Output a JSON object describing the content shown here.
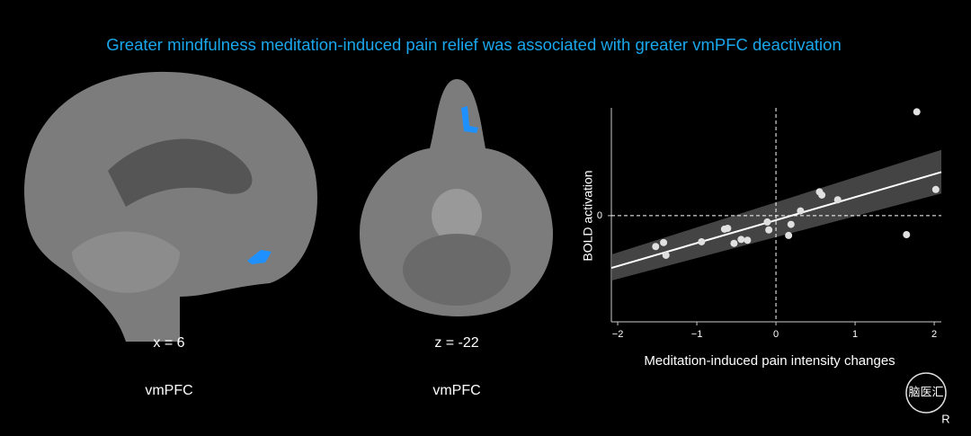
{
  "title": "Greater mindfulness meditation-induced pain relief was associated with greater vmPFC deactivation",
  "panels": [
    {
      "coord": "x = 6",
      "region": "vmPFC"
    },
    {
      "coord": "z = -22",
      "region": "vmPFC"
    }
  ],
  "chart_data": {
    "type": "scatter",
    "x_label": "Meditation-induced pain intensity changes",
    "y_label": "BOLD activation",
    "color": "#e0e0e0",
    "xlim": [
      -2.08,
      2.09
    ],
    "ylim": [
      -1.34,
      1.36
    ],
    "xticks": [
      {
        "value": -2,
        "label": "−2"
      },
      {
        "value": -1,
        "label": "−1"
      },
      0,
      1,
      2
    ],
    "yticks": [
      0
    ],
    "x": [
      -1.52,
      -1.42,
      -1.39,
      -0.94,
      -0.65,
      -0.61,
      -0.53,
      -0.44,
      -0.36,
      -0.11,
      -0.09,
      0.16,
      0.19,
      0.31,
      0.55,
      0.58,
      0.78,
      1.65,
      1.78,
      2.02
    ],
    "values": [
      -0.39,
      -0.34,
      -0.5,
      -0.33,
      -0.17,
      -0.16,
      -0.35,
      -0.3,
      -0.31,
      -0.08,
      -0.18,
      -0.25,
      -0.11,
      0.06,
      0.3,
      0.26,
      0.2,
      -0.24,
      1.31,
      0.33
    ],
    "fit": {
      "x": [
        -2.08,
        2.09
      ],
      "y": [
        -0.66,
        0.55
      ],
      "color": "#ffffff"
    },
    "ci": {
      "x": [
        -2.08,
        2.09
      ],
      "lower": [
        -0.82,
        0.28
      ],
      "upper": [
        -0.49,
        0.83
      ],
      "color": "#555555"
    }
  },
  "watermark": {
    "logo": "脑医汇",
    "mark": "R"
  }
}
